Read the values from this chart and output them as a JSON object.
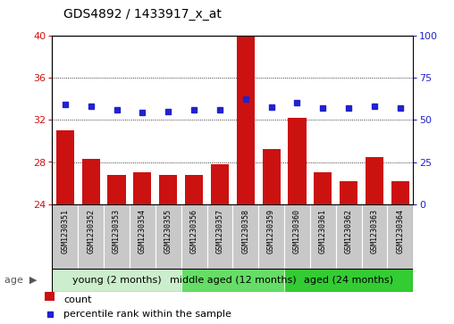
{
  "title": "GDS4892 / 1433917_x_at",
  "samples": [
    "GSM1230351",
    "GSM1230352",
    "GSM1230353",
    "GSM1230354",
    "GSM1230355",
    "GSM1230356",
    "GSM1230357",
    "GSM1230358",
    "GSM1230359",
    "GSM1230360",
    "GSM1230361",
    "GSM1230362",
    "GSM1230363",
    "GSM1230364"
  ],
  "counts": [
    31.0,
    28.3,
    26.8,
    27.0,
    26.8,
    26.8,
    27.8,
    40.0,
    29.2,
    32.2,
    27.0,
    26.2,
    28.5,
    26.2
  ],
  "percentiles": [
    33.5,
    33.3,
    33.0,
    32.7,
    32.8,
    33.0,
    33.0,
    34.0,
    33.2,
    33.6,
    33.1,
    33.1,
    33.3,
    33.1
  ],
  "ylim_left": [
    24,
    40
  ],
  "yticks_left": [
    24,
    28,
    32,
    36,
    40
  ],
  "ylim_right": [
    0,
    100
  ],
  "yticks_right": [
    0,
    25,
    50,
    75,
    100
  ],
  "bar_color": "#cc1111",
  "dot_color": "#2222cc",
  "grid_color": "#000000",
  "sample_box_color": "#c8c8c8",
  "group_defs": [
    {
      "start": 0,
      "end": 4,
      "label": "young (2 months)",
      "color": "#cceecc"
    },
    {
      "start": 5,
      "end": 8,
      "label": "middle aged (12 months)",
      "color": "#66dd66"
    },
    {
      "start": 9,
      "end": 13,
      "label": "aged (24 months)",
      "color": "#33cc33"
    }
  ],
  "age_label": "age",
  "legend_count": "count",
  "legend_pct": "percentile rank within the sample",
  "bar_width": 0.7,
  "title_fontsize": 10,
  "tick_fontsize": 8,
  "sample_fontsize": 6,
  "group_fontsize": 8,
  "legend_fontsize": 8
}
